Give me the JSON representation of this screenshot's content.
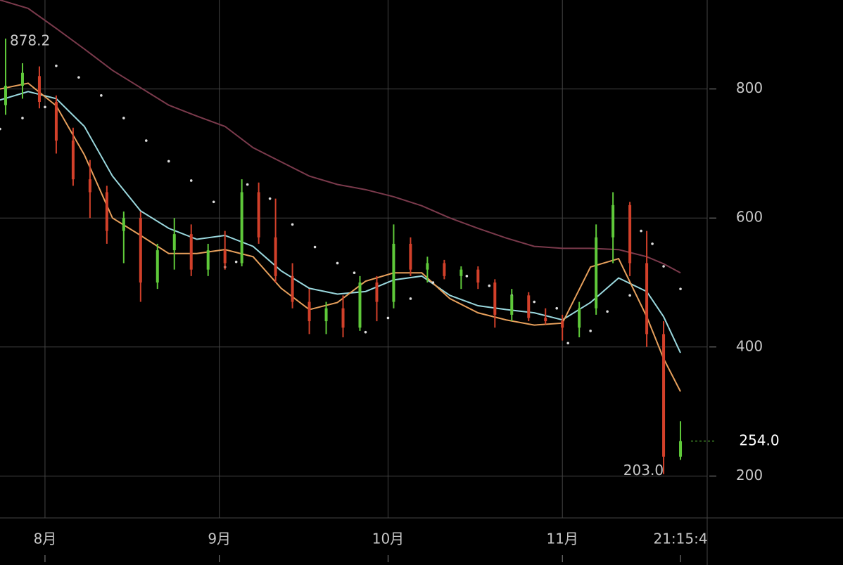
{
  "chart_data": {
    "type": "candlestick",
    "x": [
      -7,
      -4,
      -1,
      2,
      5,
      8,
      11,
      14,
      17,
      20,
      23,
      26,
      29,
      32,
      35,
      38,
      41,
      44,
      47,
      50,
      53,
      56,
      59,
      62,
      65,
      68,
      71,
      74,
      77,
      80,
      83,
      86,
      89,
      92,
      95,
      98,
      101,
      104,
      107,
      110,
      113
    ],
    "open": [
      775,
      805,
      820,
      780,
      720,
      660,
      640,
      580,
      600,
      500,
      550,
      575,
      520,
      550,
      530,
      640,
      570,
      510,
      470,
      440,
      460,
      430,
      500,
      470,
      560,
      520,
      530,
      510,
      520,
      500,
      450,
      480,
      445,
      440,
      430,
      460,
      570,
      620,
      530,
      420,
      230
    ],
    "high": [
      878.2,
      840,
      835,
      790,
      740,
      690,
      650,
      610,
      610,
      560,
      600,
      590,
      560,
      580,
      660,
      655,
      630,
      530,
      490,
      470,
      480,
      510,
      510,
      590,
      570,
      540,
      535,
      525,
      525,
      505,
      490,
      485,
      460,
      450,
      470,
      590,
      640,
      625,
      580,
      440,
      285
    ],
    "low": [
      760,
      785,
      770,
      700,
      650,
      600,
      560,
      530,
      470,
      490,
      520,
      510,
      510,
      520,
      525,
      560,
      500,
      460,
      420,
      420,
      415,
      425,
      440,
      460,
      510,
      500,
      505,
      490,
      490,
      430,
      440,
      440,
      435,
      410,
      415,
      450,
      530,
      510,
      400,
      203,
      225
    ],
    "close": [
      805,
      825,
      780,
      720,
      660,
      640,
      580,
      600,
      500,
      550,
      575,
      520,
      550,
      530,
      640,
      570,
      510,
      470,
      440,
      460,
      430,
      500,
      470,
      560,
      520,
      530,
      510,
      520,
      500,
      450,
      480,
      445,
      440,
      430,
      460,
      570,
      620,
      530,
      420,
      230,
      254
    ],
    "up_color": "#5fc93a",
    "down_color": "#d2402a",
    "line_x": [
      -8,
      -3,
      2,
      7,
      12,
      17,
      22,
      27,
      32,
      37,
      42,
      47,
      52,
      57,
      62,
      67,
      72,
      77,
      82,
      87,
      92,
      97,
      102,
      107,
      110,
      113
    ],
    "lines": [
      {
        "color": "#7b3a4c",
        "values": [
          938,
          925,
          894,
          862,
          829,
          802,
          775,
          758,
          742,
          709,
          687,
          665,
          652,
          644,
          633,
          619,
          600,
          584,
          569,
          556,
          553,
          553,
          551,
          540,
          529,
          515
        ]
      },
      {
        "color": "#9ad8de",
        "values": [
          783,
          796,
          785,
          742,
          665,
          611,
          584,
          567,
          573,
          556,
          518,
          491,
          482,
          486,
          504,
          510,
          480,
          464,
          458,
          453,
          442,
          469,
          507,
          486,
          447,
          391
        ]
      },
      {
        "color": "#e7a05c",
        "values": [
          800,
          809,
          774,
          698,
          600,
          573,
          545,
          545,
          551,
          540,
          491,
          458,
          469,
          502,
          515,
          515,
          475,
          453,
          442,
          434,
          437,
          524,
          537,
          447,
          382,
          331
        ]
      }
    ],
    "sar": {
      "color": "#dddddd",
      "x": [
        -8,
        -4,
        0,
        2,
        6,
        10,
        14,
        18,
        22,
        26,
        30,
        32,
        34,
        36,
        40,
        44,
        48,
        52,
        55,
        57,
        61,
        65,
        69,
        71,
        75,
        79,
        83,
        87,
        91,
        93,
        97,
        100,
        104,
        106,
        108,
        110,
        113
      ],
      "values": [
        738,
        755,
        772,
        836,
        818,
        790,
        755,
        720,
        688,
        658,
        625,
        524,
        532,
        652,
        630,
        590,
        555,
        530,
        515,
        423,
        445,
        475,
        500,
        526,
        510,
        495,
        480,
        470,
        460,
        406,
        425,
        455,
        480,
        580,
        560,
        525,
        490
      ]
    },
    "max_label": "878.2",
    "min_label": "203.0",
    "last_label": "254.0",
    "xlim": [
      -8,
      117.75
    ],
    "ylim": [
      135,
      938
    ],
    "xticks": [
      {
        "value": 0,
        "label": "8月"
      },
      {
        "value": 31,
        "label": "9月"
      },
      {
        "value": 61,
        "label": "10月"
      },
      {
        "value": 92,
        "label": "11月"
      },
      {
        "value": 113,
        "label": "21:15:4"
      }
    ],
    "yticks": [
      200,
      400,
      600,
      800
    ],
    "grid": true
  }
}
